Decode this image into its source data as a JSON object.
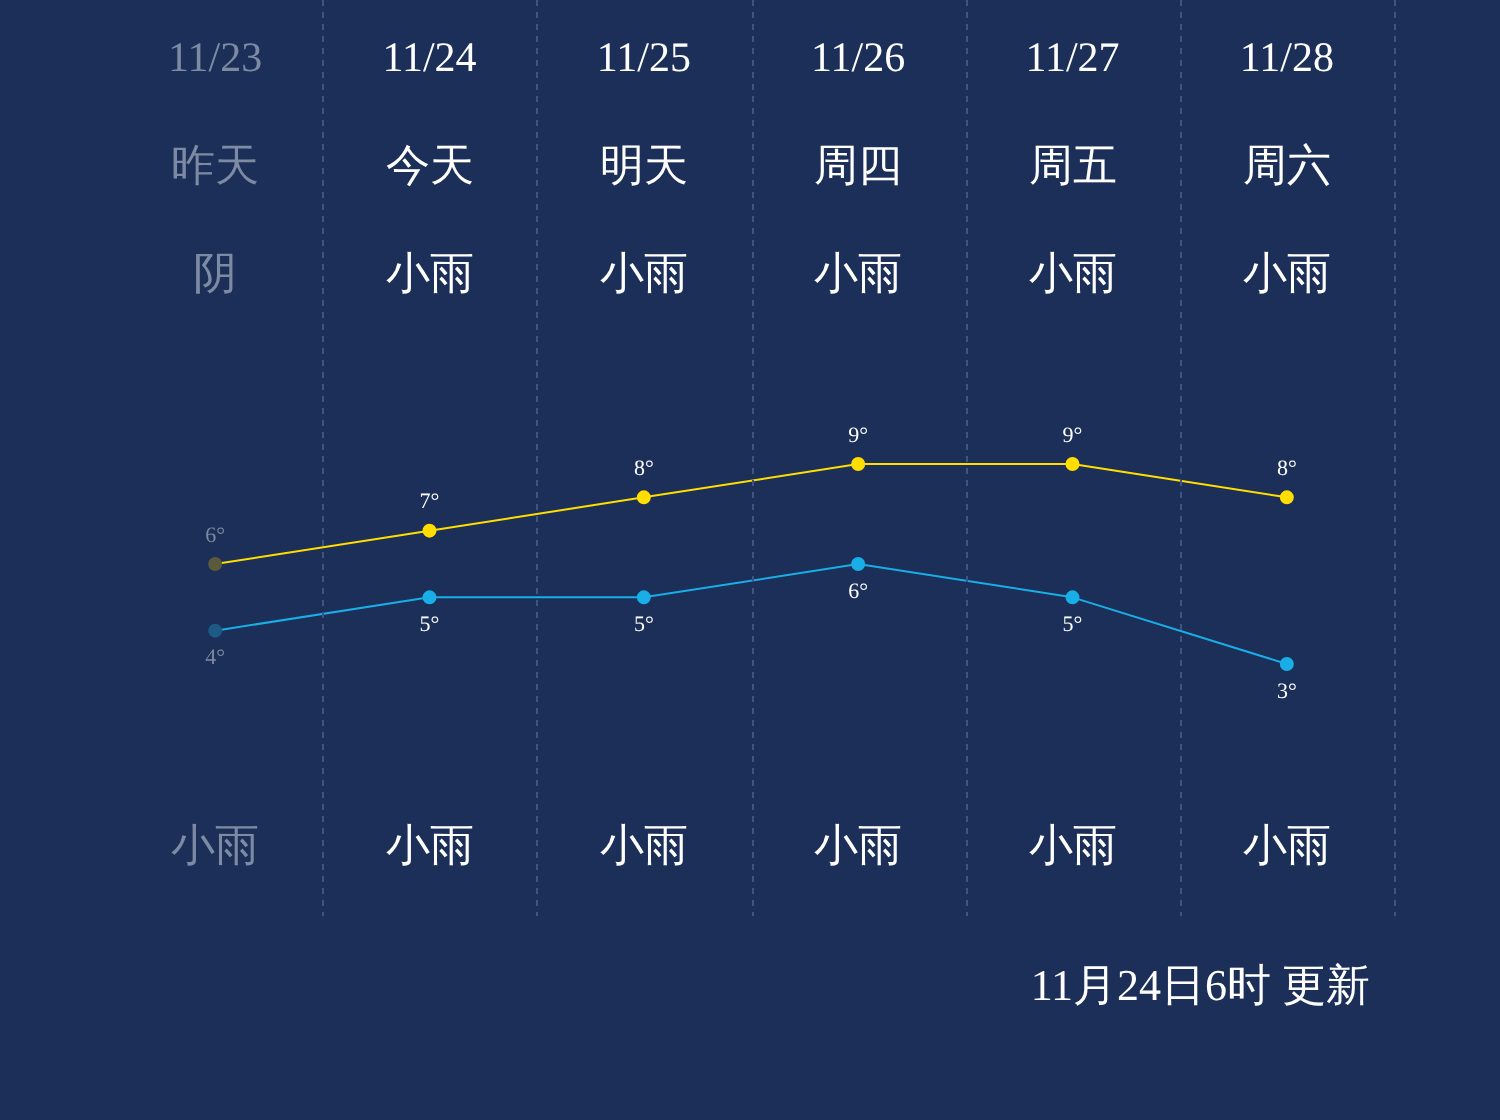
{
  "chart_data": {
    "type": "line",
    "categories": [
      "11/23",
      "11/24",
      "11/25",
      "11/26",
      "11/27",
      "11/28"
    ],
    "series": [
      {
        "color": "#ffde00",
        "colors": [
          "#5c5a3c",
          "#ffde00",
          "#ffde00",
          "#ffde00",
          "#ffde00",
          "#ffde00"
        ],
        "values": [
          6,
          7,
          8,
          9,
          9,
          8
        ],
        "value_labels": [
          "6°",
          "7°",
          "8°",
          "9°",
          "9°",
          "8°"
        ]
      },
      {
        "color": "#19aee8",
        "colors": [
          "#1d5a86",
          "#19aee8",
          "#19aee8",
          "#19aee8",
          "#19aee8",
          "#19aee8"
        ],
        "values": [
          4,
          5,
          5,
          6,
          5,
          3
        ],
        "value_labels": [
          "4°",
          "5°",
          "5°",
          "6°",
          "5°",
          "3°"
        ]
      }
    ],
    "annotations": [
      "昨天",
      "今天",
      "明天",
      "周四",
      "周五",
      "周六",
      "阴",
      "小雨",
      "小雨",
      "小雨",
      "小雨",
      "小雨",
      "小雨",
      "小雨",
      "小雨",
      "小雨",
      "小雨",
      "小雨",
      "11月24日6时 更新"
    ],
    "grid": "x",
    "legend": false,
    "marker": "circle",
    "line_style": "solid"
  }
}
